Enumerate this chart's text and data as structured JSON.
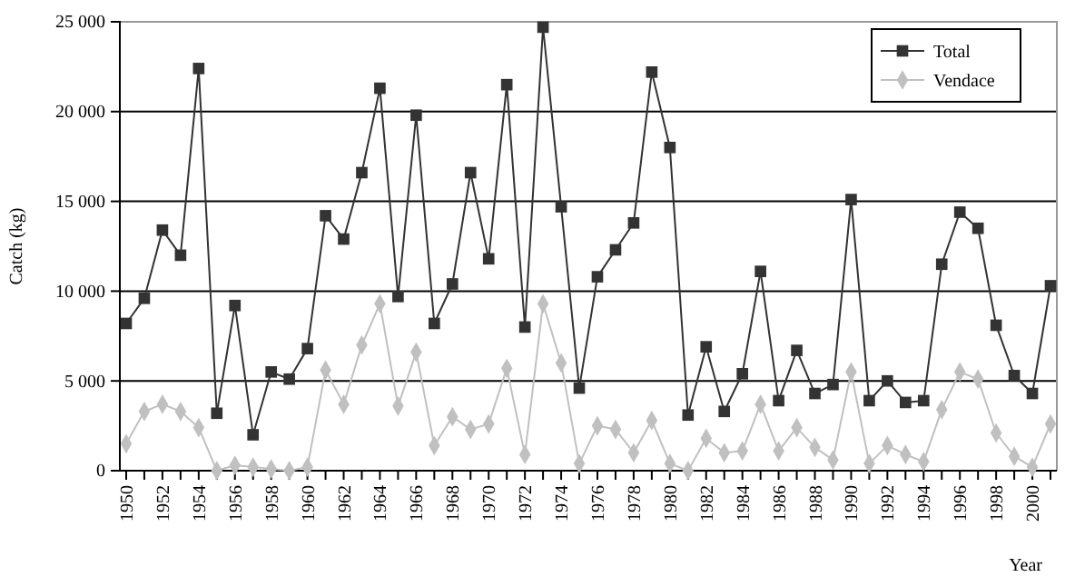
{
  "chart_data": {
    "type": "line",
    "xlabel": "Year",
    "ylabel": "Catch (kg)",
    "categories": [
      "1950",
      null,
      "1952",
      null,
      "1954",
      null,
      "1956",
      null,
      "1958",
      null,
      "1960",
      null,
      "1962",
      null,
      "1964",
      null,
      "1966",
      null,
      "1968",
      null,
      "1970",
      null,
      "1972",
      null,
      "1974",
      null,
      "1976",
      null,
      "1978",
      null,
      "1980",
      null,
      "1982",
      null,
      "1984",
      null,
      "1986",
      null,
      "1988",
      null,
      "1990",
      null,
      "1992",
      null,
      "1994",
      null,
      "1996",
      null,
      "1998",
      null,
      "2000",
      null
    ],
    "series": [
      {
        "name": "Total",
        "color": "#333333",
        "marker": "square",
        "values": [
          8200,
          9600,
          13400,
          12000,
          22400,
          3200,
          9200,
          2000,
          5500,
          5100,
          6800,
          14200,
          12900,
          16600,
          21300,
          9700,
          19800,
          8200,
          10400,
          16600,
          11800,
          21500,
          8000,
          24700,
          14700,
          4600,
          10800,
          12300,
          13800,
          22200,
          18000,
          3100,
          6900,
          3300,
          5400,
          11100,
          3900,
          6700,
          4300,
          4800,
          15100,
          3900,
          5000,
          3800,
          3900,
          11500,
          14400,
          13500,
          8100,
          5300,
          4300,
          10300
        ]
      },
      {
        "name": "Vendace",
        "color": "#c0c0c0",
        "marker": "diamond",
        "values": [
          1500,
          3300,
          3700,
          3300,
          2400,
          0,
          300,
          200,
          100,
          0,
          200,
          5600,
          3700,
          7000,
          9300,
          3600,
          6600,
          1400,
          3000,
          2300,
          2600,
          5700,
          900,
          9300,
          6000,
          400,
          2500,
          2300,
          1000,
          2800,
          400,
          0,
          1800,
          1000,
          1100,
          3700,
          1100,
          2400,
          1300,
          600,
          5500,
          400,
          1400,
          900,
          500,
          3400,
          5500,
          5100,
          2100,
          800,
          200,
          2600
        ]
      }
    ],
    "ylim": [
      0,
      25000
    ],
    "yticks": [
      0,
      {
        "value": 5000,
        "label": "5 000"
      },
      {
        "value": 10000,
        "label": "10 000"
      },
      {
        "value": 15000,
        "label": "15 000"
      },
      {
        "value": 20000,
        "label": "20 000"
      },
      {
        "value": 25000,
        "label": "25 000"
      }
    ],
    "grid": "y",
    "legend": "top right"
  }
}
